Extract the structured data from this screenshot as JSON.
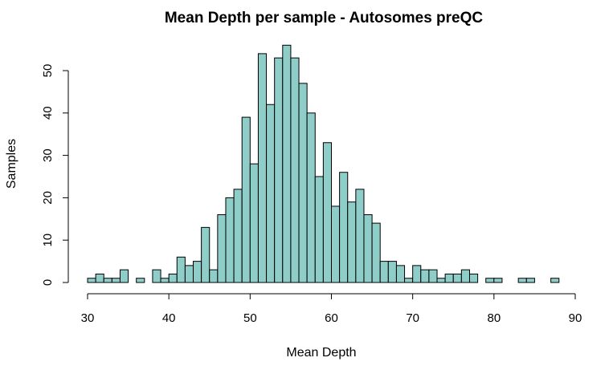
{
  "chart_data": {
    "type": "bar",
    "title": "Mean Depth per sample - Autosomes preQC",
    "xlabel": "Mean Depth",
    "ylabel": "Samples",
    "xlim": [
      30,
      90
    ],
    "ylim": [
      0,
      55
    ],
    "x_ticks": [
      30,
      40,
      50,
      60,
      70,
      80,
      90
    ],
    "y_ticks": [
      0,
      10,
      20,
      30,
      40,
      50
    ],
    "bar_color": "#8ecdc8",
    "bin_start": 30,
    "bin_width": 1,
    "values": [
      1,
      2,
      1,
      1,
      3,
      0,
      1,
      0,
      3,
      1,
      2,
      6,
      4,
      5,
      13,
      3,
      16,
      20,
      22,
      39,
      28,
      54,
      42,
      53,
      56,
      53,
      47,
      40,
      25,
      33,
      18,
      26,
      19,
      22,
      16,
      14,
      5,
      5,
      4,
      1,
      4,
      3,
      3,
      1,
      2,
      2,
      3,
      2,
      0,
      1,
      1,
      0,
      0,
      1,
      1,
      0,
      0,
      1
    ]
  }
}
